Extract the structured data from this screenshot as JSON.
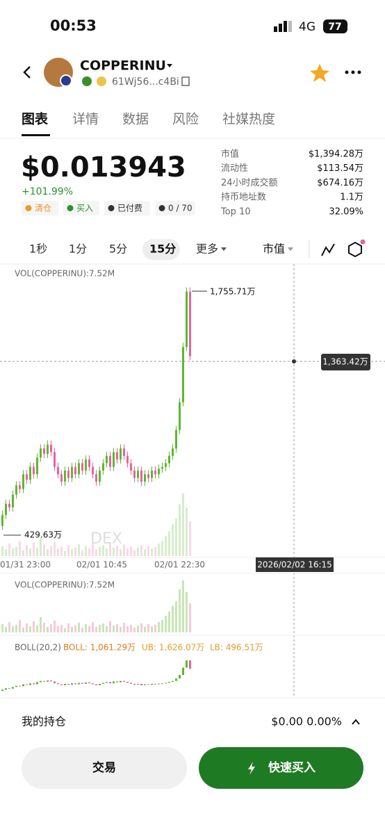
{
  "status_bar": {
    "time": "00:53",
    "network": "4G",
    "battery": "77"
  },
  "header": {
    "symbol": "COPPERINU",
    "address": "61Wj56...c4Bi"
  },
  "tabs": [
    "图表",
    "详情",
    "数据",
    "风险",
    "社媒热度"
  ],
  "price": {
    "value": "$0.013943",
    "change": "+101.99%",
    "tags": [
      "清仓",
      "买入",
      "已付费",
      "0 / 70"
    ]
  },
  "stats": [
    {
      "label": "市值",
      "value": "$1,394.28万"
    },
    {
      "label": "流动性",
      "value": "$113.54万"
    },
    {
      "label": "24小时成交额",
      "value": "$674.16万"
    },
    {
      "label": "持币地址数",
      "value": "1.1万"
    },
    {
      "label": "Top 10",
      "value": "32.09%"
    }
  ],
  "intervals": [
    "1秒",
    "1分",
    "5分",
    "15分",
    "更多"
  ],
  "metric": "市值",
  "chart": {
    "type": "candlestick",
    "volume_label": "VOL(COPPERINU):7.52M",
    "high_label": "1,755.71万",
    "low_label": "429.63万",
    "crosshair_label": "1,363.42万",
    "watermark": "DEX",
    "x_labels": [
      "01/31 23:00",
      "02/01 10:45",
      "02/01 22:30"
    ],
    "crosshair_time": "2026/02/02 16:15",
    "ylim": [
      317,
      1899
    ],
    "open": [
      480,
      540,
      600,
      580,
      650,
      700,
      680,
      760,
      730,
      800,
      760,
      850,
      900,
      870,
      920,
      880,
      800,
      760,
      720,
      780,
      740,
      800,
      760,
      820,
      780,
      840,
      800,
      760,
      720,
      780,
      820,
      860,
      800,
      880,
      840,
      900,
      860,
      820,
      780,
      740,
      780,
      720,
      760,
      740,
      780,
      760,
      790,
      800,
      820,
      860,
      900,
      1000,
      1150,
      1450,
      1750
    ],
    "close": [
      540,
      600,
      580,
      650,
      700,
      680,
      760,
      730,
      800,
      760,
      850,
      900,
      870,
      920,
      880,
      800,
      760,
      720,
      780,
      740,
      800,
      760,
      820,
      780,
      840,
      800,
      760,
      720,
      780,
      820,
      860,
      800,
      880,
      840,
      900,
      860,
      820,
      780,
      740,
      780,
      720,
      760,
      740,
      780,
      760,
      790,
      800,
      820,
      860,
      900,
      1000,
      1150,
      1450,
      1750,
      1400
    ],
    "volume": [
      1.2,
      0.8,
      1.5,
      0.9,
      1.1,
      1.8,
      0.7,
      1.3,
      0.9,
      1.6,
      1.0,
      2.2,
      1.4,
      0.8,
      1.2,
      1.7,
      0.9,
      1.1,
      0.6,
      1.3,
      0.8,
      1.0,
      1.4,
      0.7,
      1.2,
      0.9,
      1.5,
      0.8,
      1.1,
      1.3,
      0.9,
      1.6,
      1.0,
      1.2,
      0.8,
      1.4,
      0.9,
      1.1,
      0.7,
      1.0,
      1.3,
      0.8,
      1.2,
      0.9,
      1.1,
      1.5,
      1.8,
      2.4,
      3.0,
      3.8,
      4.5,
      6.2,
      7.5,
      5.8,
      4.2
    ],
    "up_color": "#5cb82e",
    "down_color": "#e8629e"
  },
  "volume_panel": {
    "label": "VOL(COPPERINU):7.52M"
  },
  "boll_panel": {
    "name": "BOLL(20,2)",
    "boll": "BOLL: 1,061.29万",
    "ub": "UB: 1,626.07万",
    "lb": "LB: 496.51万"
  },
  "holdings": {
    "label": "我的持仓",
    "value": "$0.00 0.00%"
  },
  "buttons": {
    "trade": "交易",
    "quick_buy": "快速买入"
  }
}
